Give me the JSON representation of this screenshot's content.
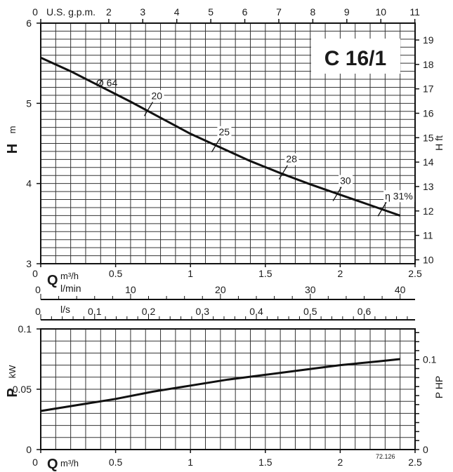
{
  "chart_data": {
    "type": "line",
    "title": "C 16/1",
    "code": "72.126",
    "head_chart": {
      "y_label": "H",
      "y_unit": "m",
      "y2_label": "H ft",
      "x_label": "Q",
      "x_unit": "m³/h",
      "xlim": [
        0,
        2.5
      ],
      "ylim": [
        3,
        6
      ],
      "y2lim": [
        9.84,
        19.69
      ],
      "x_ticks": [
        "0",
        "0.5",
        "1",
        "1.5",
        "2",
        "2.5"
      ],
      "y_ticks": [
        "3",
        "4",
        "5",
        "6"
      ],
      "y2_ticks": [
        "10",
        "11",
        "12",
        "13",
        "14",
        "15",
        "16",
        "17",
        "18",
        "19"
      ],
      "gpm_label": "U.S. g.p.m.",
      "gpm_ticks": [
        "0",
        "2",
        "3",
        "4",
        "5",
        "6",
        "7",
        "8",
        "9",
        "10",
        "11"
      ],
      "series": [
        {
          "name": "Ø 64",
          "x": [
            0.0,
            0.2,
            0.4,
            0.6,
            0.8,
            1.0,
            1.2,
            1.4,
            1.6,
            1.8,
            2.0,
            2.2,
            2.4
          ],
          "y": [
            5.57,
            5.4,
            5.21,
            5.02,
            4.82,
            4.62,
            4.45,
            4.28,
            4.13,
            3.99,
            3.86,
            3.73,
            3.6
          ]
        }
      ],
      "efficiency_marks": [
        {
          "label": "20",
          "x": 0.72,
          "y": 4.93
        },
        {
          "label": "25",
          "x": 1.17,
          "y": 4.48
        },
        {
          "label": "28",
          "x": 1.62,
          "y": 4.14
        },
        {
          "label": "30",
          "x": 1.98,
          "y": 3.87
        },
        {
          "label": "η 31%",
          "x": 2.28,
          "y": 3.68
        }
      ]
    },
    "flow_scales": {
      "lmin_label": "l/min",
      "lmin_ticks": [
        "0",
        "10",
        "20",
        "30",
        "40"
      ],
      "ls_label": "l/s",
      "ls_ticks": [
        "0",
        "0.1",
        "0.2",
        "0.3",
        "0.4",
        "0.5",
        "0.6"
      ]
    },
    "power_chart": {
      "y_label": "P",
      "y_unit": "kW",
      "y2_label": "P HP",
      "x_label": "Q",
      "x_unit": "m³/h",
      "xlim": [
        0,
        2.5
      ],
      "ylim": [
        0,
        0.1
      ],
      "x_ticks": [
        "0",
        "0.5",
        "1",
        "1.5",
        "2",
        "2.5"
      ],
      "y_ticks": [
        "0",
        "0.05",
        "0.1"
      ],
      "y2_ticks": [
        "0",
        "0.1"
      ],
      "series": [
        {
          "name": "P",
          "x": [
            0.0,
            0.25,
            0.5,
            0.75,
            1.0,
            1.25,
            1.5,
            1.75,
            2.0,
            2.25,
            2.4
          ],
          "y": [
            0.032,
            0.037,
            0.042,
            0.048,
            0.053,
            0.058,
            0.062,
            0.066,
            0.07,
            0.073,
            0.075
          ]
        }
      ]
    }
  }
}
